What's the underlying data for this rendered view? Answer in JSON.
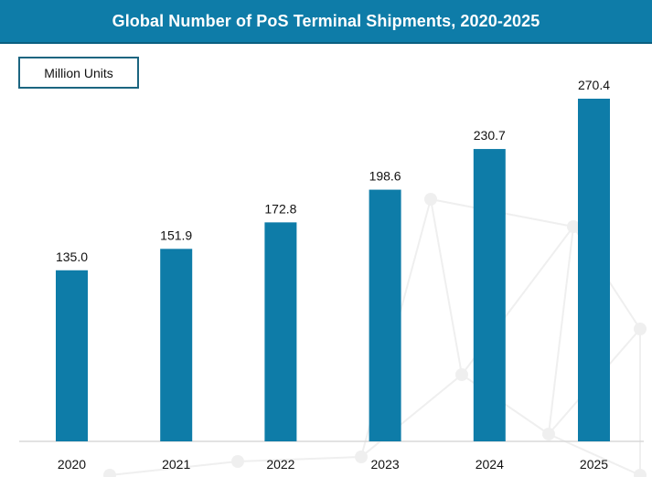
{
  "header": {
    "title": "Global Number of PoS Terminal Shipments, 2020-2025"
  },
  "unit_label": "Million Units",
  "colors": {
    "bar": "#0e7ca8",
    "header": "#0e7ca8",
    "axis": "#d9d9d9",
    "background_network": "#efefef"
  },
  "chart_data": {
    "type": "bar",
    "title": "Global Number of PoS Terminal Shipments, 2020-2025",
    "xlabel": "",
    "ylabel": "Million Units",
    "categories": [
      "2020",
      "2021",
      "2022",
      "2023",
      "2024",
      "2025"
    ],
    "values": [
      135.0,
      151.9,
      172.8,
      198.6,
      230.7,
      270.4
    ],
    "value_labels": [
      "135.0",
      "151.9",
      "172.8",
      "198.6",
      "230.7",
      "270.4"
    ],
    "ylim": [
      0,
      270.4
    ],
    "grid": false,
    "legend": "none"
  }
}
